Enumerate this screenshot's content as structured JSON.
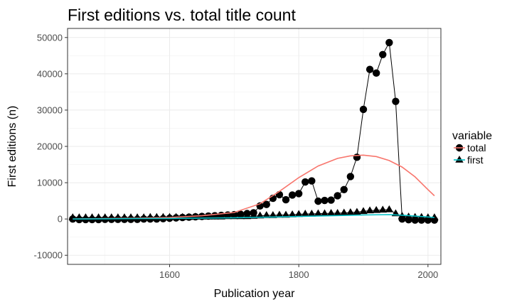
{
  "chart_data": {
    "type": "scatter",
    "title": "First editions vs. total title count",
    "xlabel": "Publication year",
    "ylabel": "First editions (n)",
    "xlim": [
      1442,
      2020
    ],
    "ylim": [
      -12500,
      52500
    ],
    "x_ticks": [
      1600,
      1800,
      2000
    ],
    "x_tick_labels": [
      "1600",
      "1800",
      "2000"
    ],
    "y_ticks": [
      -10000,
      0,
      10000,
      20000,
      30000,
      40000,
      50000
    ],
    "y_tick_labels": [
      "-10000",
      "0",
      "10000",
      "20000",
      "30000",
      "40000",
      "50000"
    ],
    "grid": true,
    "legend_position": "right",
    "legend_title": "variable",
    "series": [
      {
        "name": "total",
        "marker": "circle",
        "color": "#000000",
        "smooth_color": "#F8766D",
        "points": [
          [
            1450,
            0
          ],
          [
            1460,
            -150
          ],
          [
            1470,
            -150
          ],
          [
            1480,
            -150
          ],
          [
            1490,
            -150
          ],
          [
            1500,
            -100
          ],
          [
            1510,
            -100
          ],
          [
            1520,
            -100
          ],
          [
            1530,
            -100
          ],
          [
            1540,
            -100
          ],
          [
            1550,
            -100
          ],
          [
            1560,
            0
          ],
          [
            1570,
            0
          ],
          [
            1580,
            0
          ],
          [
            1590,
            100
          ],
          [
            1600,
            200
          ],
          [
            1610,
            300
          ],
          [
            1620,
            400
          ],
          [
            1630,
            500
          ],
          [
            1640,
            600
          ],
          [
            1650,
            700
          ],
          [
            1660,
            800
          ],
          [
            1670,
            900
          ],
          [
            1680,
            1000
          ],
          [
            1690,
            1100
          ],
          [
            1700,
            1200
          ],
          [
            1710,
            1300
          ],
          [
            1720,
            1500
          ],
          [
            1730,
            1700
          ],
          [
            1740,
            3600
          ],
          [
            1750,
            4000
          ],
          [
            1760,
            5700
          ],
          [
            1770,
            6700
          ],
          [
            1780,
            5300
          ],
          [
            1790,
            6600
          ],
          [
            1800,
            7000
          ],
          [
            1810,
            10200
          ],
          [
            1820,
            10500
          ],
          [
            1830,
            4900
          ],
          [
            1840,
            5100
          ],
          [
            1850,
            5200
          ],
          [
            1860,
            6400
          ],
          [
            1870,
            8100
          ],
          [
            1880,
            11700
          ],
          [
            1890,
            17000
          ],
          [
            1900,
            30200
          ],
          [
            1910,
            41200
          ],
          [
            1920,
            40200
          ],
          [
            1930,
            45300
          ],
          [
            1940,
            48600
          ],
          [
            1950,
            32400
          ],
          [
            1960,
            0
          ],
          [
            1970,
            -200
          ],
          [
            1980,
            -300
          ],
          [
            1990,
            -300
          ],
          [
            2000,
            -300
          ],
          [
            2010,
            -300
          ]
        ],
        "smooth": [
          [
            1450,
            0
          ],
          [
            1500,
            100
          ],
          [
            1550,
            200
          ],
          [
            1600,
            400
          ],
          [
            1650,
            900
          ],
          [
            1700,
            1800
          ],
          [
            1740,
            4200
          ],
          [
            1770,
            7600
          ],
          [
            1800,
            11400
          ],
          [
            1830,
            14600
          ],
          [
            1860,
            16700
          ],
          [
            1880,
            17400
          ],
          [
            1900,
            17600
          ],
          [
            1920,
            17200
          ],
          [
            1940,
            16100
          ],
          [
            1960,
            14300
          ],
          [
            1980,
            11600
          ],
          [
            2000,
            8100
          ],
          [
            2010,
            6400
          ]
        ]
      },
      {
        "name": "first",
        "marker": "triangle",
        "color": "#000000",
        "smooth_color": "#00BFC4",
        "points": [
          [
            1450,
            400
          ],
          [
            1460,
            400
          ],
          [
            1470,
            400
          ],
          [
            1480,
            400
          ],
          [
            1490,
            400
          ],
          [
            1500,
            400
          ],
          [
            1510,
            400
          ],
          [
            1520,
            400
          ],
          [
            1530,
            400
          ],
          [
            1540,
            400
          ],
          [
            1550,
            400
          ],
          [
            1560,
            400
          ],
          [
            1570,
            500
          ],
          [
            1580,
            500
          ],
          [
            1590,
            500
          ],
          [
            1600,
            500
          ],
          [
            1610,
            500
          ],
          [
            1620,
            500
          ],
          [
            1630,
            500
          ],
          [
            1640,
            600
          ],
          [
            1650,
            600
          ],
          [
            1660,
            600
          ],
          [
            1670,
            600
          ],
          [
            1680,
            600
          ],
          [
            1690,
            700
          ],
          [
            1700,
            700
          ],
          [
            1710,
            700
          ],
          [
            1720,
            700
          ],
          [
            1730,
            800
          ],
          [
            1740,
            900
          ],
          [
            1750,
            1000
          ],
          [
            1760,
            1000
          ],
          [
            1770,
            1100
          ],
          [
            1780,
            1100
          ],
          [
            1790,
            1200
          ],
          [
            1800,
            1300
          ],
          [
            1810,
            1400
          ],
          [
            1820,
            1400
          ],
          [
            1830,
            1500
          ],
          [
            1840,
            1500
          ],
          [
            1850,
            1600
          ],
          [
            1860,
            1600
          ],
          [
            1870,
            1700
          ],
          [
            1880,
            1800
          ],
          [
            1890,
            1900
          ],
          [
            1900,
            2100
          ],
          [
            1910,
            2300
          ],
          [
            1920,
            2400
          ],
          [
            1930,
            2500
          ],
          [
            1940,
            2600
          ],
          [
            1950,
            1500
          ],
          [
            1960,
            800
          ],
          [
            1970,
            600
          ],
          [
            1980,
            500
          ],
          [
            1990,
            500
          ],
          [
            2000,
            400
          ],
          [
            2010,
            400
          ]
        ],
        "smooth": [
          [
            1450,
            0
          ],
          [
            1500,
            50
          ],
          [
            1550,
            100
          ],
          [
            1600,
            150
          ],
          [
            1650,
            250
          ],
          [
            1700,
            350
          ],
          [
            1750,
            500
          ],
          [
            1800,
            700
          ],
          [
            1850,
            900
          ],
          [
            1900,
            1100
          ],
          [
            1940,
            1200
          ],
          [
            1960,
            1050
          ],
          [
            1980,
            800
          ],
          [
            2000,
            550
          ],
          [
            2010,
            400
          ]
        ]
      }
    ]
  }
}
